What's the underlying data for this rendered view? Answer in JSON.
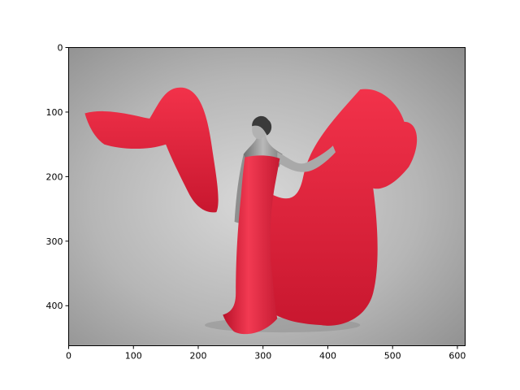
{
  "chart_data": {
    "type": "image",
    "title": "",
    "xlabel": "",
    "ylabel": "",
    "xlim": [
      0,
      612
    ],
    "ylim": [
      462,
      0
    ],
    "x_ticks": [
      0,
      100,
      200,
      300,
      400,
      500,
      600
    ],
    "y_ticks": [
      0,
      100,
      200,
      300,
      400
    ],
    "grid": false,
    "legend": "none",
    "image_content": {
      "subject": "woman in flowing dress",
      "tint": "grayscale with red dress",
      "dress_color": "#f0283f",
      "background_color": "#b8b8b8"
    }
  }
}
